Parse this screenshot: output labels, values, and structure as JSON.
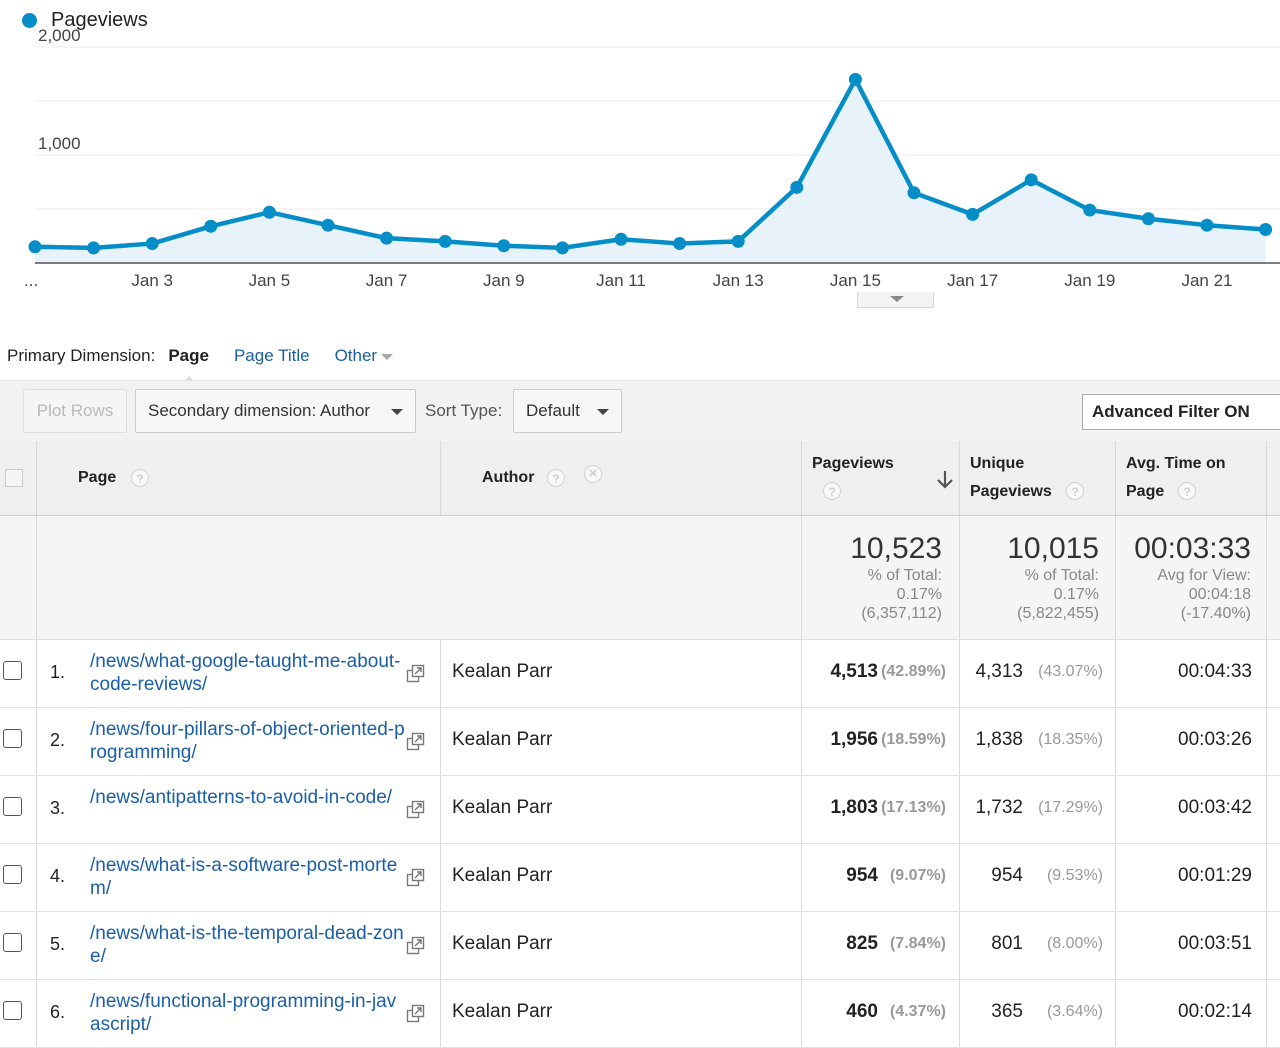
{
  "chart": {
    "legend_label": "Pageviews",
    "legend_color": "#058dc7",
    "y_tick_labels": [
      "2,000",
      "1,000"
    ],
    "x_tick_labels": [
      "...",
      "Jan 3",
      "Jan 5",
      "Jan 7",
      "Jan 9",
      "Jan 11",
      "Jan 13",
      "Jan 15",
      "Jan 17",
      "Jan 19",
      "Jan 21"
    ]
  },
  "chart_data": {
    "type": "area",
    "series": [
      {
        "name": "Pageviews",
        "values": [
          150,
          140,
          180,
          340,
          470,
          350,
          230,
          200,
          160,
          140,
          220,
          180,
          200,
          700,
          1700,
          650,
          450,
          770,
          490,
          410,
          350,
          310
        ]
      }
    ],
    "x": [
      "Jan 1",
      "Jan 2",
      "Jan 3",
      "Jan 4",
      "Jan 5",
      "Jan 6",
      "Jan 7",
      "Jan 8",
      "Jan 9",
      "Jan 10",
      "Jan 11",
      "Jan 12",
      "Jan 13",
      "Jan 14",
      "Jan 15",
      "Jan 16",
      "Jan 17",
      "Jan 18",
      "Jan 19",
      "Jan 20",
      "Jan 21",
      "Jan 22"
    ],
    "ylim": [
      0,
      2000
    ],
    "color": "#058dc7",
    "grid": true,
    "legend": "top-left"
  },
  "primary_dimension": {
    "label": "Primary Dimension:",
    "options": [
      "Page",
      "Page Title",
      "Other"
    ],
    "selected": "Page"
  },
  "toolbar": {
    "plot_rows_label": "Plot Rows",
    "secondary_dimension_label": "Secondary dimension: Author",
    "sort_type_label": "Sort Type:",
    "sort_type_value": "Default",
    "advanced_filter_label": "Advanced Filter ON"
  },
  "table": {
    "headers": {
      "page": "Page",
      "author": "Author",
      "pageviews": "Pageviews",
      "unique_pageviews_line1": "Unique",
      "unique_pageviews_line2": "Pageviews",
      "avg_time_line1": "Avg. Time on",
      "avg_time_line2": "Page",
      "help_glyph": "?",
      "remove_glyph": "×"
    },
    "totals": {
      "pageviews": "10,523",
      "pageviews_label": "% of Total:",
      "pageviews_pct": "0.17%",
      "pageviews_total": "(6,357,112)",
      "unique_pageviews": "10,015",
      "unique_label": "% of Total:",
      "unique_pct": "0.17%",
      "unique_total": "(5,822,455)",
      "avg_time": "00:03:33",
      "avg_label": "Avg for View:",
      "avg_view": "00:04:18",
      "avg_diff": "(-17.40%)"
    },
    "rows": [
      {
        "index": "1.",
        "page": "/news/what-google-taught-me-about-code-reviews/",
        "author": "Kealan Parr",
        "pageviews": "4,513",
        "pageviews_pct": "(42.89%)",
        "unique": "4,313",
        "unique_pct": "(43.07%)",
        "avg_time": "00:04:33"
      },
      {
        "index": "2.",
        "page": "/news/four-pillars-of-object-oriented-programming/",
        "author": "Kealan Parr",
        "pageviews": "1,956",
        "pageviews_pct": "(18.59%)",
        "unique": "1,838",
        "unique_pct": "(18.35%)",
        "avg_time": "00:03:26"
      },
      {
        "index": "3.",
        "page": "/news/antipatterns-to-avoid-in-code/",
        "author": "Kealan Parr",
        "pageviews": "1,803",
        "pageviews_pct": "(17.13%)",
        "unique": "1,732",
        "unique_pct": "(17.29%)",
        "avg_time": "00:03:42"
      },
      {
        "index": "4.",
        "page": "/news/what-is-a-software-post-mortem/",
        "author": "Kealan Parr",
        "pageviews": "954",
        "pageviews_pct": "(9.07%)",
        "unique": "954",
        "unique_pct": "(9.53%)",
        "avg_time": "00:01:29"
      },
      {
        "index": "5.",
        "page": "/news/what-is-the-temporal-dead-zone/",
        "author": "Kealan Parr",
        "pageviews": "825",
        "pageviews_pct": "(7.84%)",
        "unique": "801",
        "unique_pct": "(8.00%)",
        "avg_time": "00:03:51"
      },
      {
        "index": "6.",
        "page": "/news/functional-programming-in-javascript/",
        "author": "Kealan Parr",
        "pageviews": "460",
        "pageviews_pct": "(4.37%)",
        "unique": "365",
        "unique_pct": "(3.64%)",
        "avg_time": "00:02:14"
      }
    ]
  }
}
